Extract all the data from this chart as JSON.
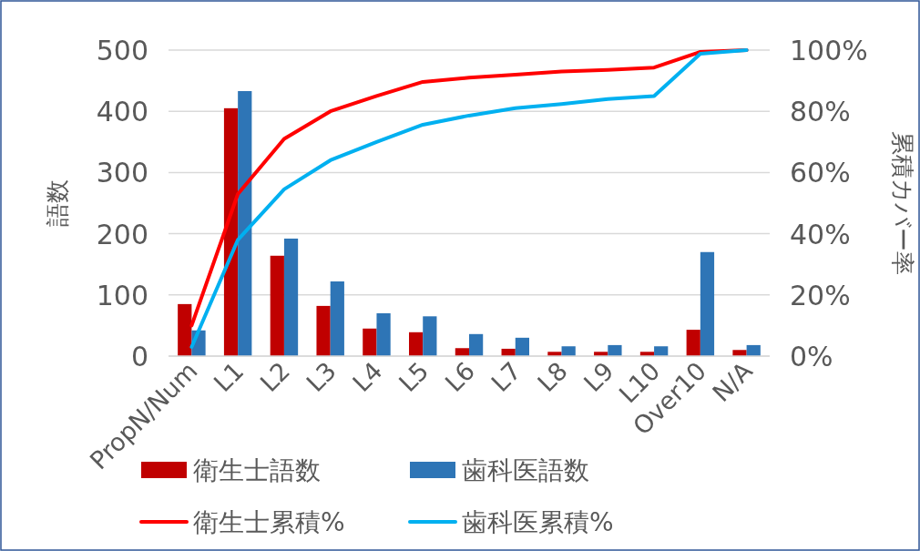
{
  "chart_data": {
    "type": "bar",
    "categories": [
      "PropN/Num",
      "L1",
      "L2",
      "L3",
      "L4",
      "L5",
      "L6",
      "L7",
      "L8",
      "L9",
      "L10",
      "Over10",
      "N/A"
    ],
    "series": [
      {
        "name": "衛生士語数",
        "color": "#c00000",
        "values": [
          85,
          405,
          164,
          82,
          45,
          39,
          13,
          12,
          7,
          7,
          7,
          43,
          10
        ]
      },
      {
        "name": "歯科医語数",
        "color": "#2e75b6",
        "values": [
          42,
          433,
          192,
          122,
          70,
          65,
          36,
          30,
          16,
          18,
          16,
          170,
          18
        ]
      },
      {
        "name": "衛生士累積%",
        "type": "line",
        "axis": "y2",
        "color": "#ff0000",
        "values": [
          10,
          53,
          71,
          80,
          85,
          89.6,
          91,
          92,
          93,
          93.5,
          94.3,
          99.4,
          100
        ]
      },
      {
        "name": "歯科医累積%",
        "type": "line",
        "axis": "y2",
        "color": "#00b0f0",
        "values": [
          3,
          38,
          54.5,
          64,
          70,
          75.6,
          78.6,
          81,
          82.4,
          84,
          85,
          98.8,
          100
        ]
      }
    ],
    "ylabel": "語数",
    "y2label": "累積カバー率",
    "ylim": [
      0,
      500
    ],
    "yticks": [
      0,
      100,
      200,
      300,
      400,
      500
    ],
    "y2lim": [
      0,
      100
    ],
    "y2ticks": [
      {
        "value": 0,
        "label": "0%"
      },
      {
        "value": 20,
        "label": "20%"
      },
      {
        "value": 40,
        "label": "40%"
      },
      {
        "value": 60,
        "label": "60%"
      },
      {
        "value": 80,
        "label": "80%"
      },
      {
        "value": 100,
        "label": "100%"
      }
    ],
    "grid": "y",
    "legend": "bottom",
    "marker": "none",
    "line_style": "solid"
  }
}
